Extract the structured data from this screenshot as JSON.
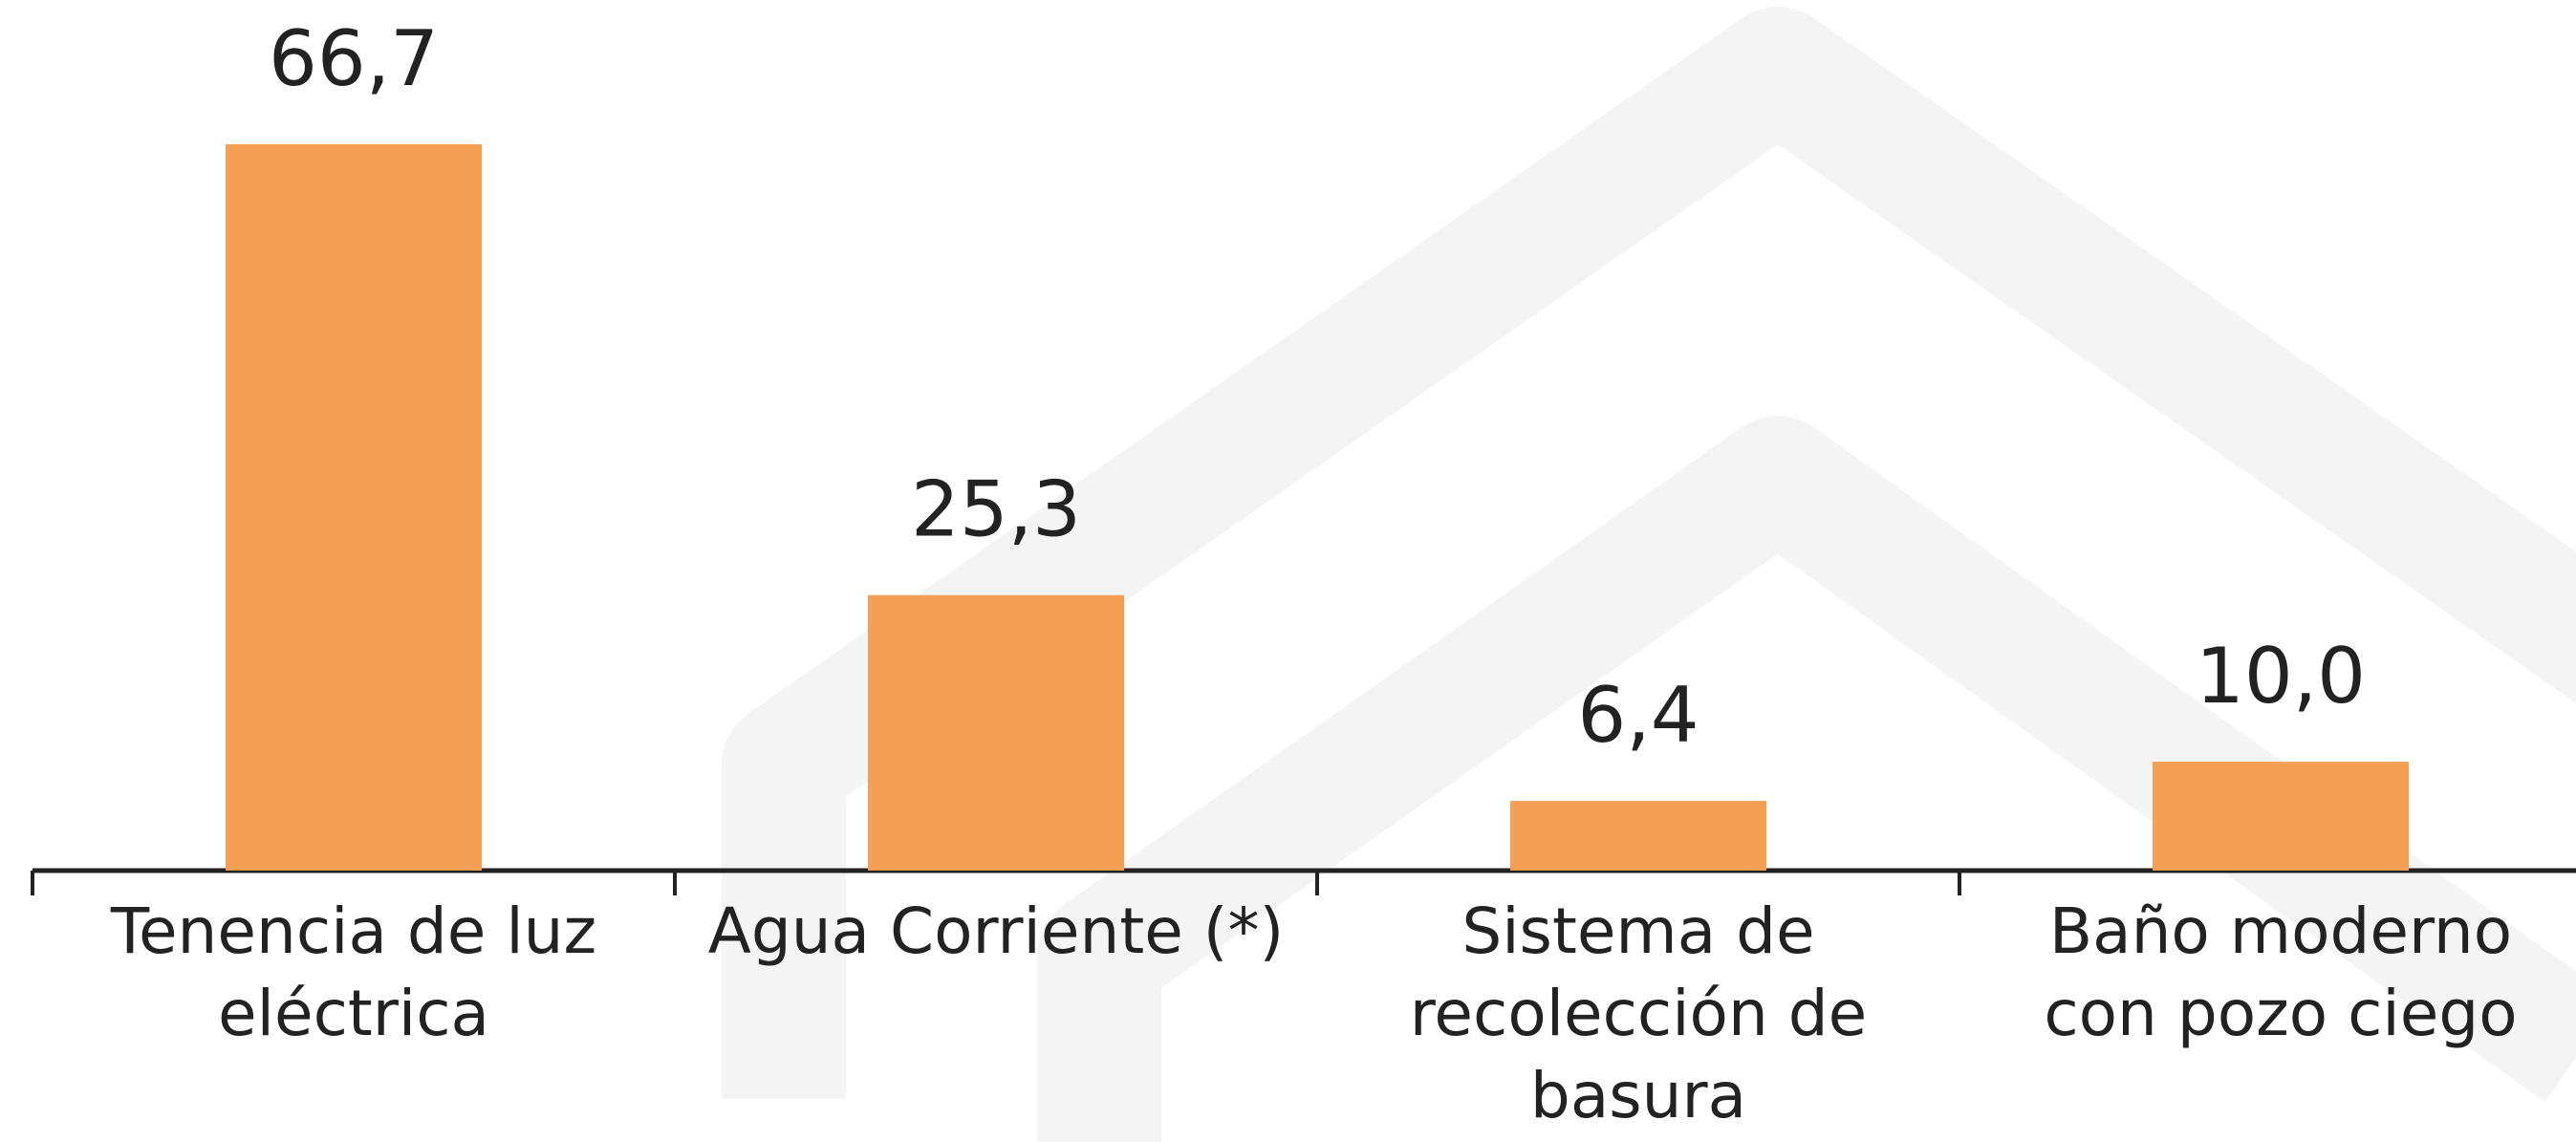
{
  "chart_data": {
    "type": "bar",
    "categories": [
      "Tenencia de luz eléctrica",
      "Agua Corriente (*)",
      "Sistema de recolección de basura",
      "Baño moderno con pozo ciego"
    ],
    "values": [
      66.7,
      25.3,
      6.4,
      10.0
    ],
    "value_labels": [
      "66,7",
      "25,3",
      "6,4",
      "10,0"
    ],
    "color": "#f59f55"
  }
}
